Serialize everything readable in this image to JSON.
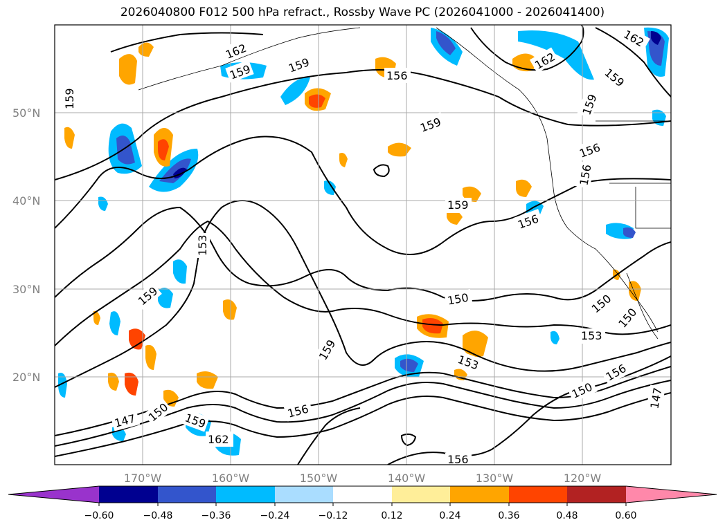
{
  "title": "2026040800 F012 500 hPa refract., Rossby Wave PC (2026041000 - 2026041400)",
  "lat_labels": [
    "50°N",
    "40°N",
    "30°N",
    "20°N"
  ],
  "lon_labels": [
    "170°W",
    "160°W",
    "150°W",
    "140°W",
    "130°W",
    "120°W"
  ],
  "contour_labels": [
    "162",
    "159",
    "159",
    "156",
    "162",
    "162",
    "159",
    "159",
    "159",
    "156",
    "156",
    "159",
    "156",
    "153",
    "159",
    "150",
    "159",
    "153",
    "153",
    "156",
    "150",
    "150",
    "147",
    "147",
    "150",
    "159",
    "162",
    "156",
    "159",
    "150",
    "156"
  ],
  "colorbar": {
    "ticks": [
      "−0.60",
      "−0.48",
      "−0.36",
      "−0.24",
      "−0.12",
      "0.12",
      "0.24",
      "0.36",
      "0.48",
      "0.60"
    ],
    "colors": [
      "#9933cc",
      "#000090",
      "#3355cc",
      "#00bbff",
      "#aaddff",
      "#ffffff",
      "#ffee99",
      "#ffa500",
      "#ff4400",
      "#b22222",
      "#ff88aa"
    ]
  }
}
